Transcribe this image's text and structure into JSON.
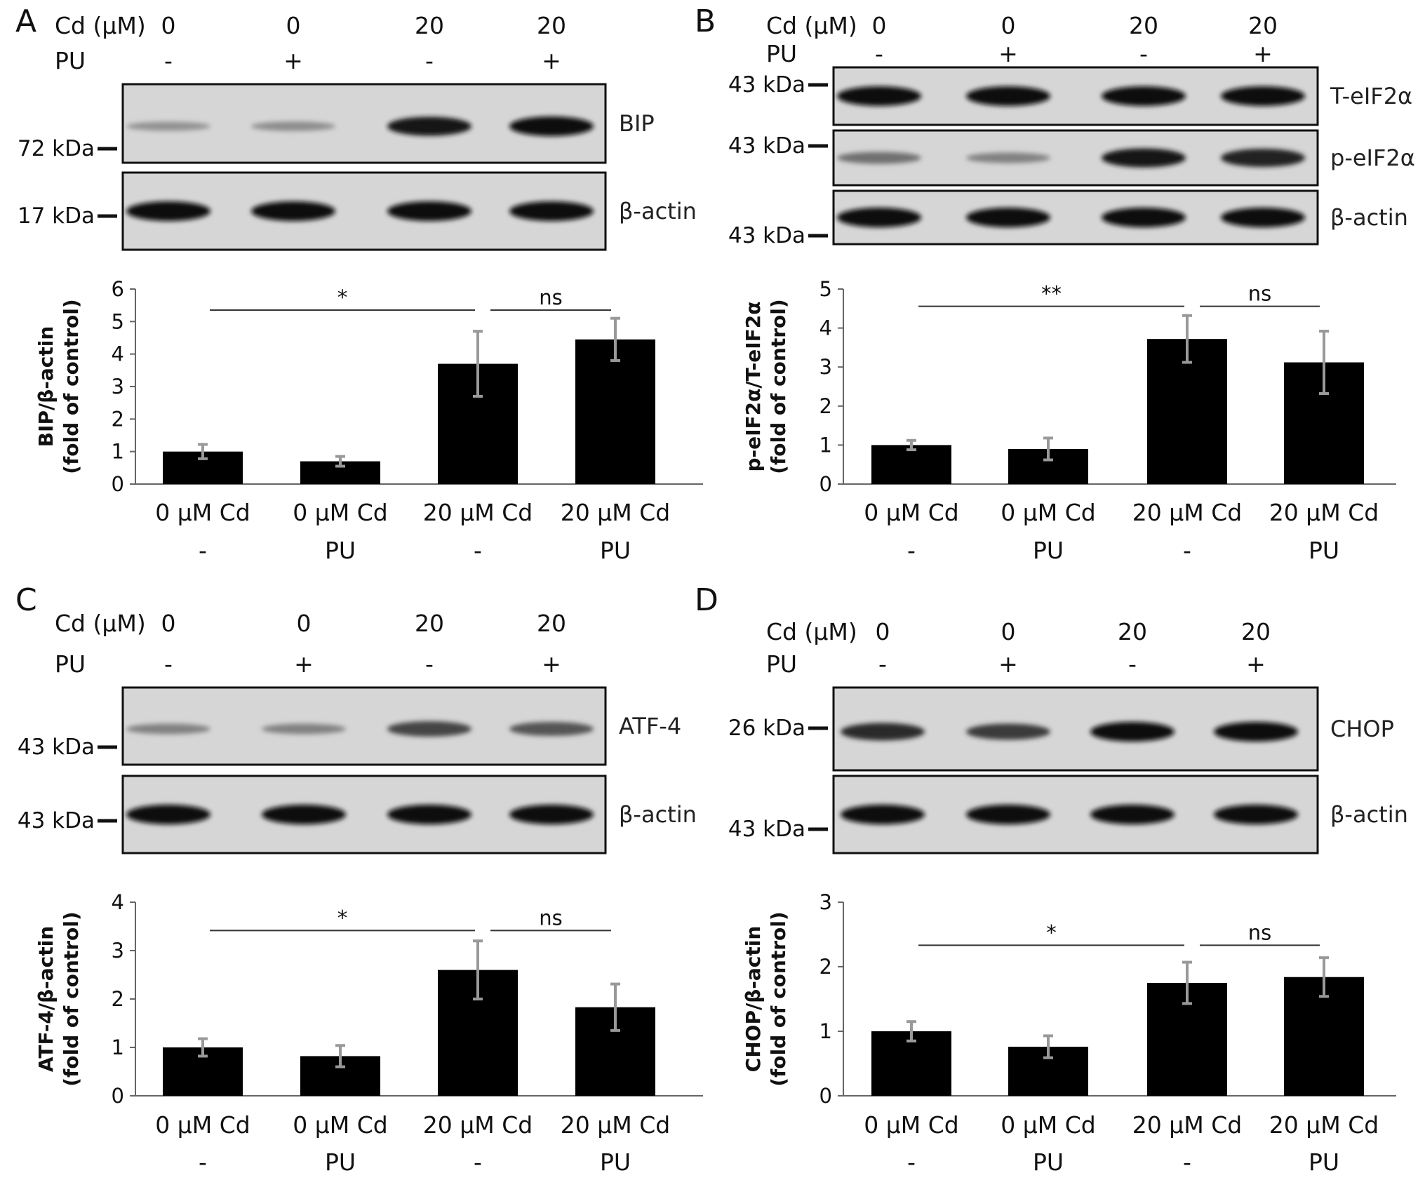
{
  "colors": {
    "bar": "#000000",
    "error_bar": "#999999",
    "blot_bg": "#d6d6d6",
    "band": "#141414"
  },
  "figure": {
    "panels": [
      {
        "letter": "A",
        "cd_label": "Cd (μM)",
        "pu_label": "PU",
        "cd_values": [
          "0",
          "0",
          "20",
          "20"
        ],
        "pu_values": [
          "-",
          "+",
          "-",
          "+"
        ],
        "blots": [
          {
            "protein": "BIP",
            "kda": "72 kDa",
            "intensity": [
              0.25,
              0.28,
              0.95,
              1.0
            ]
          },
          {
            "protein": "β-actin",
            "kda": "17 kDa",
            "intensity": [
              1.0,
              1.0,
              1.0,
              1.0
            ]
          }
        ]
      },
      {
        "letter": "B",
        "cd_label": "Cd (μM)",
        "pu_label": "PU",
        "cd_values": [
          "0",
          "0",
          "20",
          "20"
        ],
        "pu_values": [
          "-",
          "+",
          "-",
          "+"
        ],
        "blots": [
          {
            "protein": "T-eIF2α",
            "kda": "43 kDa",
            "intensity": [
              1.0,
              1.0,
              1.0,
              1.0
            ]
          },
          {
            "protein": "p-eIF2α",
            "kda": "43 kDa",
            "intensity": [
              0.45,
              0.35,
              0.95,
              0.9
            ]
          },
          {
            "protein": "β-actin",
            "kda": "43 kDa",
            "intensity": [
              1.0,
              1.0,
              1.0,
              1.0
            ]
          }
        ]
      },
      {
        "letter": "C",
        "cd_label": "Cd (μM)",
        "pu_label": "PU",
        "cd_values": [
          "0",
          "0",
          "20",
          "20"
        ],
        "pu_values": [
          "-",
          "+",
          "-",
          "+"
        ],
        "blots": [
          {
            "protein": "ATF-4",
            "kda": "43 kDa",
            "intensity": [
              0.35,
              0.35,
              0.7,
              0.6
            ]
          },
          {
            "protein": "β-actin",
            "kda": "43 kDa",
            "intensity": [
              1.0,
              1.0,
              1.0,
              1.0
            ]
          }
        ]
      },
      {
        "letter": "D",
        "cd_label": "Cd (μM)",
        "pu_label": "PU",
        "cd_values": [
          "0",
          "0",
          "20",
          "20"
        ],
        "pu_values": [
          "-",
          "+",
          "-",
          "+"
        ],
        "blots": [
          {
            "protein": "CHOP",
            "kda": "26 kDa",
            "intensity": [
              0.85,
              0.75,
              1.0,
              1.0
            ]
          },
          {
            "protein": "β-actin",
            "kda": "43 kDa",
            "intensity": [
              1.0,
              1.0,
              1.0,
              1.0
            ]
          }
        ]
      }
    ]
  },
  "chart_data": [
    {
      "type": "bar",
      "panel": "A",
      "categories": [
        "0 μM Cd",
        "0 μM Cd",
        "20 μM Cd",
        "20 μM Cd"
      ],
      "treatments": [
        "-",
        "PU",
        "-",
        "PU"
      ],
      "values": [
        1.0,
        0.7,
        3.7,
        4.45
      ],
      "errors": [
        0.22,
        0.15,
        1.0,
        0.65
      ],
      "ylabel": [
        "BIP/β-actin",
        "(fold of control)"
      ],
      "ylim": [
        0,
        6
      ],
      "yticks": [
        "0",
        "1",
        "2",
        "3",
        "4",
        "5",
        "6"
      ],
      "significance": [
        {
          "from": 0,
          "to": 2,
          "label": "*"
        },
        {
          "from": 2,
          "to": 3,
          "label": "ns"
        }
      ]
    },
    {
      "type": "bar",
      "panel": "B",
      "categories": [
        "0 μM Cd",
        "0 μM Cd",
        "20 μM Cd",
        "20 μM Cd"
      ],
      "treatments": [
        "-",
        "PU",
        "-",
        "PU"
      ],
      "values": [
        1.0,
        0.9,
        3.72,
        3.12
      ],
      "errors": [
        0.12,
        0.28,
        0.6,
        0.8
      ],
      "ylabel": [
        "p-eIF2α/T-eIF2α",
        "(fold of control)"
      ],
      "ylim": [
        0,
        5
      ],
      "yticks": [
        "0",
        "1",
        "2",
        "3",
        "4",
        "5"
      ],
      "significance": [
        {
          "from": 0,
          "to": 2,
          "label": "**"
        },
        {
          "from": 2,
          "to": 3,
          "label": "ns"
        }
      ]
    },
    {
      "type": "bar",
      "panel": "C",
      "categories": [
        "0 μM Cd",
        "0 μM Cd",
        "20 μM Cd",
        "20 μM Cd"
      ],
      "treatments": [
        "-",
        "PU",
        "-",
        "PU"
      ],
      "values": [
        1.0,
        0.82,
        2.6,
        1.83
      ],
      "errors": [
        0.18,
        0.22,
        0.6,
        0.48
      ],
      "ylabel": [
        "ATF-4/β-actin",
        "(fold of control)"
      ],
      "ylim": [
        0,
        4
      ],
      "yticks": [
        "0",
        "1",
        "2",
        "3",
        "4"
      ],
      "significance": [
        {
          "from": 0,
          "to": 2,
          "label": "*"
        },
        {
          "from": 2,
          "to": 3,
          "label": "ns"
        }
      ]
    },
    {
      "type": "bar",
      "panel": "D",
      "categories": [
        "0 μM Cd",
        "0 μM Cd",
        "20 μM Cd",
        "20 μM Cd"
      ],
      "treatments": [
        "-",
        "PU",
        "-",
        "PU"
      ],
      "values": [
        1.0,
        0.76,
        1.75,
        1.84
      ],
      "errors": [
        0.15,
        0.17,
        0.32,
        0.3
      ],
      "ylabel": [
        "CHOP/β-actin",
        "(fold of control)"
      ],
      "ylim": [
        0,
        3
      ],
      "yticks": [
        "0",
        "1",
        "2",
        "3"
      ],
      "significance": [
        {
          "from": 0,
          "to": 2,
          "label": "*"
        },
        {
          "from": 2,
          "to": 3,
          "label": "ns"
        }
      ]
    }
  ]
}
